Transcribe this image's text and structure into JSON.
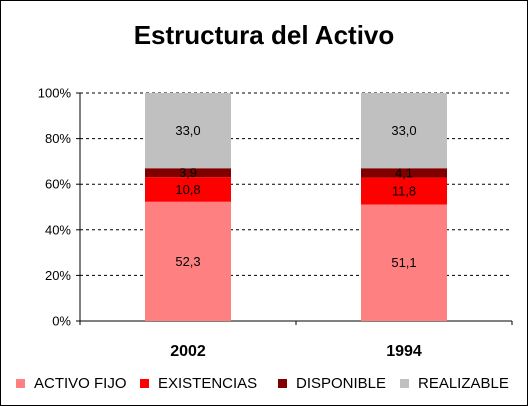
{
  "chart_data": {
    "type": "bar",
    "stacked": true,
    "title": "Estructura del Activo",
    "categories": [
      "2002",
      "1994"
    ],
    "series": [
      {
        "name": "ACTIVO FIJO",
        "values": [
          52.3,
          51.1
        ],
        "labels": [
          "52,3",
          "51,1"
        ],
        "color": "#ff8080"
      },
      {
        "name": "EXISTENCIAS",
        "values": [
          10.8,
          11.8
        ],
        "labels": [
          "10,8",
          "11,8"
        ],
        "color": "#ff0000"
      },
      {
        "name": "DISPONIBLE",
        "values": [
          3.9,
          4.1
        ],
        "labels": [
          "3,9",
          "4,1"
        ],
        "color": "#800000"
      },
      {
        "name": "REALIZABLE",
        "values": [
          33.0,
          33.0
        ],
        "labels": [
          "33,0",
          "33,0"
        ],
        "color": "#c0c0c0"
      }
    ],
    "yticks": [
      "0%",
      "20%",
      "40%",
      "60%",
      "80%",
      "100%"
    ],
    "ylim": [
      0,
      100
    ],
    "grid": true,
    "legend": "bottom"
  }
}
